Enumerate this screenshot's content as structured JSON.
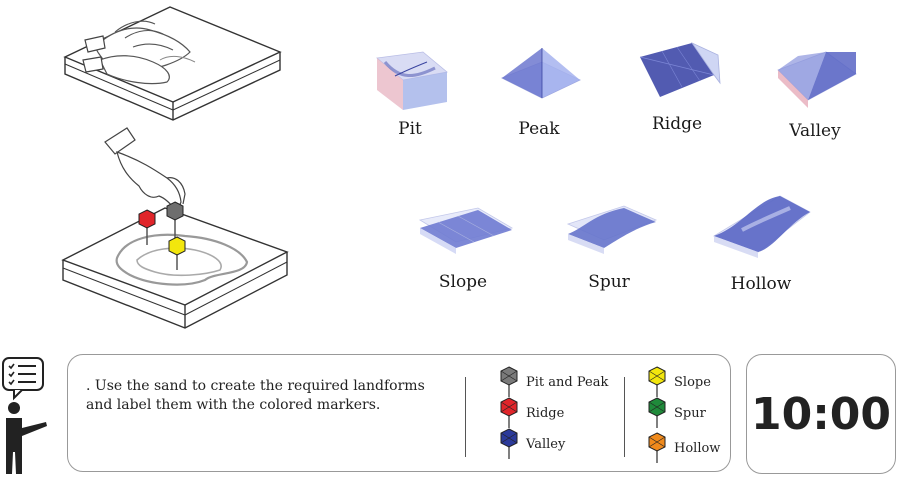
{
  "landforms": [
    {
      "label": "Pit"
    },
    {
      "label": "Peak"
    },
    {
      "label": "Ridge"
    },
    {
      "label": "Valley"
    },
    {
      "label": "Slope"
    },
    {
      "label": "Spur"
    },
    {
      "label": "Hollow"
    }
  ],
  "instruction": ". Use the sand to create the required landforms and label them with the colored markers.",
  "legend": [
    {
      "label": "Pit and Peak",
      "color": "#7a7a7a"
    },
    {
      "label": "Ridge",
      "color": "#e0252a"
    },
    {
      "label": "Valley",
      "color": "#2b3a9a"
    },
    {
      "label": "Slope",
      "color": "#f2e60d"
    },
    {
      "label": "Spur",
      "color": "#1f8a3a"
    },
    {
      "label": "Hollow",
      "color": "#f08a1c"
    }
  ],
  "timer": "10:00",
  "icons": {
    "instructor": "checklist-speech-icon",
    "marker": "hexagon-pin-marker-icon"
  }
}
